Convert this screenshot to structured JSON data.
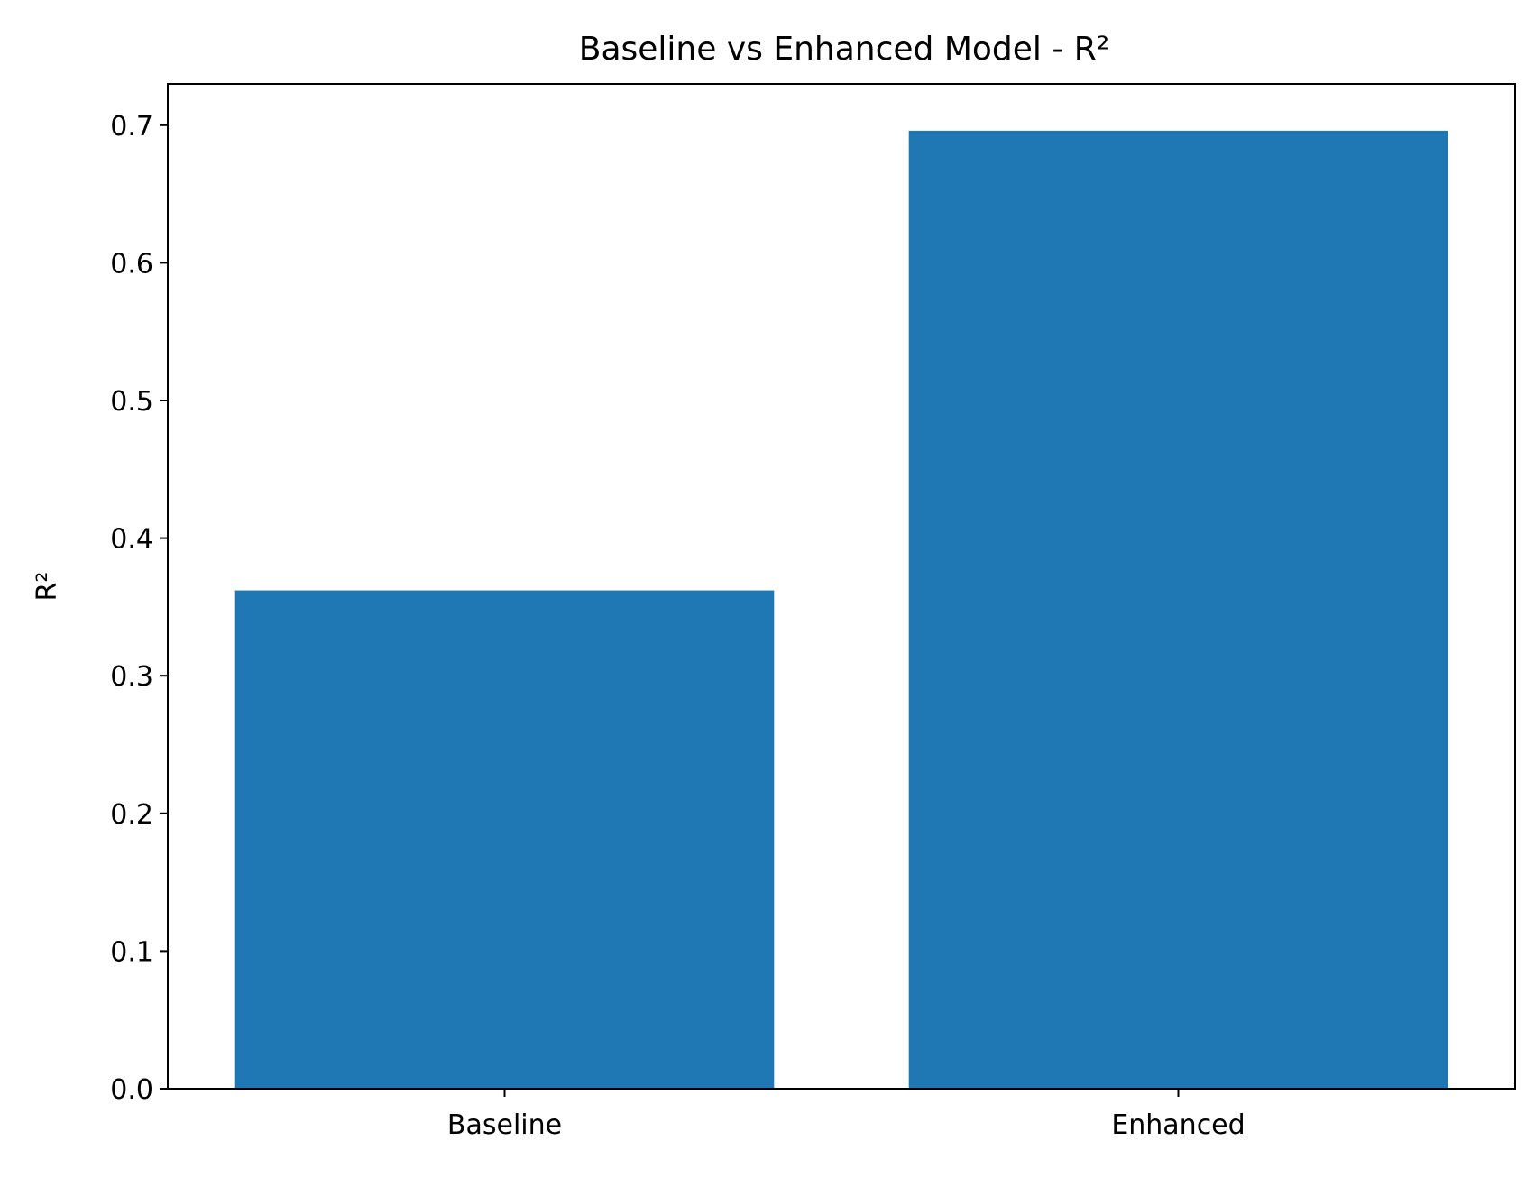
{
  "chart_data": {
    "type": "bar",
    "title": "Baseline vs Enhanced Model - R²",
    "xlabel": "",
    "ylabel": "R²",
    "categories": [
      "Baseline",
      "Enhanced"
    ],
    "values": [
      0.362,
      0.696
    ],
    "ylim": [
      0.0,
      0.73
    ],
    "yticks": [
      "0.0",
      "0.1",
      "0.2",
      "0.3",
      "0.4",
      "0.5",
      "0.6",
      "0.7"
    ],
    "bar_color": "#1f77b4",
    "grid": false,
    "legend": "none"
  }
}
